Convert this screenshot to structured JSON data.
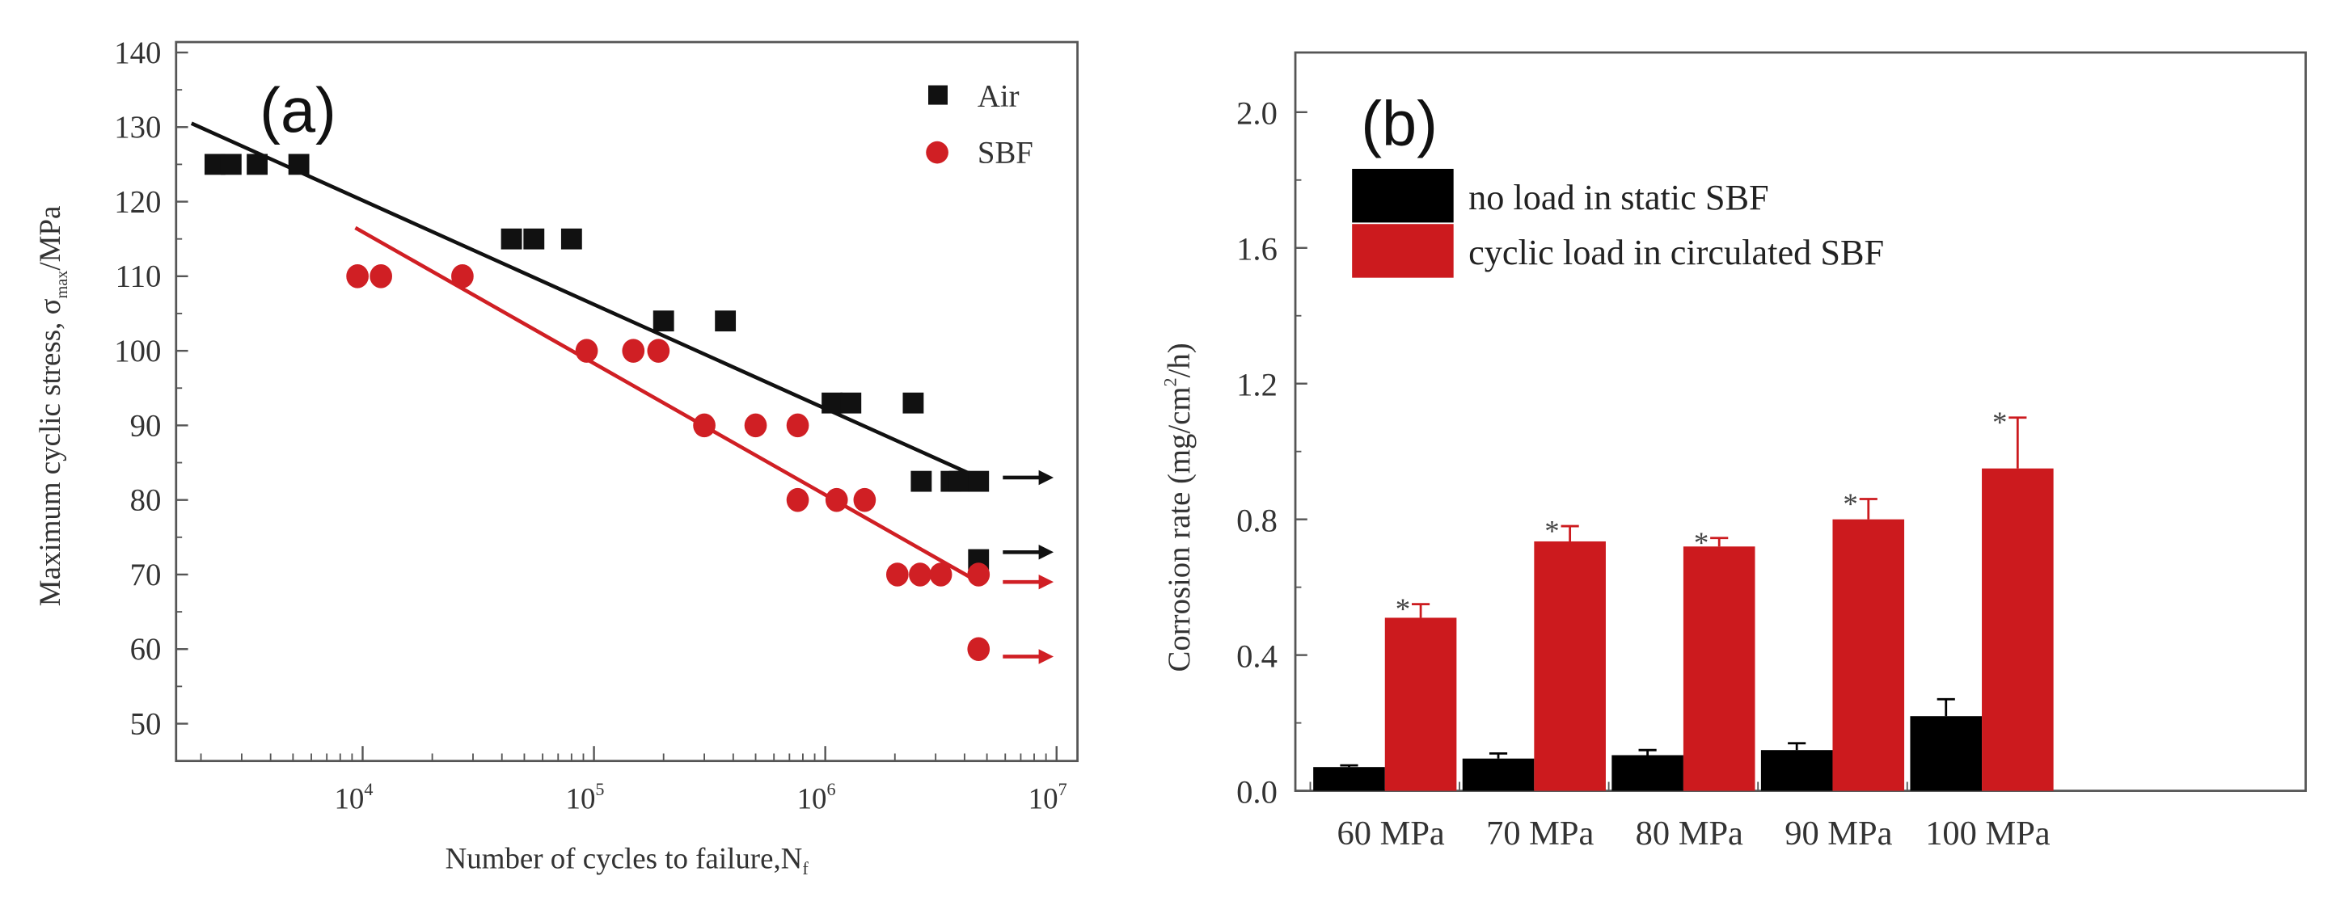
{
  "chart_data": [
    {
      "type": "scatter",
      "panel_label": "(a)",
      "xlabel": "Number of cycles to failure,N",
      "xlabel_sub": "f",
      "ylabel": "Maximum cyclic stress, σ",
      "ylabel_sub": "max",
      "ylabel_suffix": "/MPa",
      "xscale": "log",
      "xlim": [
        1550,
        12600000
      ],
      "ylim": [
        45,
        141.5
      ],
      "xticks": [
        {
          "base": "10",
          "exp": "4",
          "value": 10000
        },
        {
          "base": "10",
          "exp": "5",
          "value": 100000
        },
        {
          "base": "10",
          "exp": "6",
          "value": 1000000
        },
        {
          "base": "10",
          "exp": "7",
          "value": 10000000
        }
      ],
      "yticks": [
        "50",
        "60",
        "70",
        "80",
        "90",
        "100",
        "110",
        "120",
        "130",
        "140"
      ],
      "legend_position": "top-right",
      "series": [
        {
          "name": "Air",
          "color": "#111111",
          "marker": "square",
          "points": [
            [
              2300,
              125
            ],
            [
              2700,
              125
            ],
            [
              3500,
              125
            ],
            [
              5300,
              125
            ],
            [
              44000,
              115
            ],
            [
              55000,
              115
            ],
            [
              80000,
              115
            ],
            [
              200000,
              104
            ],
            [
              370000,
              104
            ],
            [
              1070000,
              93
            ],
            [
              1290000,
              93
            ],
            [
              2400000,
              93
            ],
            [
              2600000,
              82.5
            ],
            [
              3500000,
              82.5
            ],
            [
              3800000,
              82.5
            ],
            [
              4600000,
              82.5
            ],
            [
              4600000,
              72
            ]
          ],
          "fit": [
            [
              1820,
              130.5
            ],
            [
              4600000,
              83
            ]
          ],
          "runouts": [
            83,
            73
          ]
        },
        {
          "name": "SBF",
          "color": "#d01f24",
          "marker": "circle",
          "points": [
            [
              9500,
              110
            ],
            [
              12000,
              110
            ],
            [
              27000,
              110
            ],
            [
              93000,
              100
            ],
            [
              148000,
              100
            ],
            [
              190000,
              100
            ],
            [
              300000,
              90
            ],
            [
              500000,
              90
            ],
            [
              760000,
              90
            ],
            [
              760000,
              80
            ],
            [
              1120000,
              80
            ],
            [
              1480000,
              80
            ],
            [
              2050000,
              70
            ],
            [
              2570000,
              70
            ],
            [
              3160000,
              70
            ],
            [
              4600000,
              70
            ],
            [
              4600000,
              60
            ]
          ],
          "fit": [
            [
              9300,
              116.5
            ],
            [
              4600000,
              69
            ]
          ],
          "runouts": [
            69,
            59
          ]
        }
      ]
    },
    {
      "type": "bar",
      "panel_label": "(b)",
      "categories": [
        "60 MPa",
        "70 MPa",
        "80 MPa",
        "90 MPa",
        "100 MPa"
      ],
      "ylabel": "Corrosion rate (mg/cm",
      "ylabel_sup": "2",
      "ylabel_suffix": "/h)",
      "xlabel": "",
      "ylim": [
        0,
        2.2
      ],
      "yticks": [
        "0.0",
        "0.4",
        "0.8",
        "1.2",
        "1.6",
        "2.0"
      ],
      "legend_position": "top-left",
      "significance_marker": "*",
      "series": [
        {
          "name": "no load in static SBF",
          "color": "#000000",
          "values": [
            0.07,
            0.095,
            0.105,
            0.12,
            0.22
          ],
          "error_upper": [
            0.075,
            0.11,
            0.12,
            0.14,
            0.27
          ]
        },
        {
          "name": "cyclic load in circulated SBF",
          "color": "#cc1a1e",
          "values": [
            0.51,
            0.735,
            0.72,
            0.8,
            0.95
          ],
          "error_upper": [
            0.55,
            0.78,
            0.745,
            0.86,
            1.1
          ]
        }
      ]
    }
  ]
}
